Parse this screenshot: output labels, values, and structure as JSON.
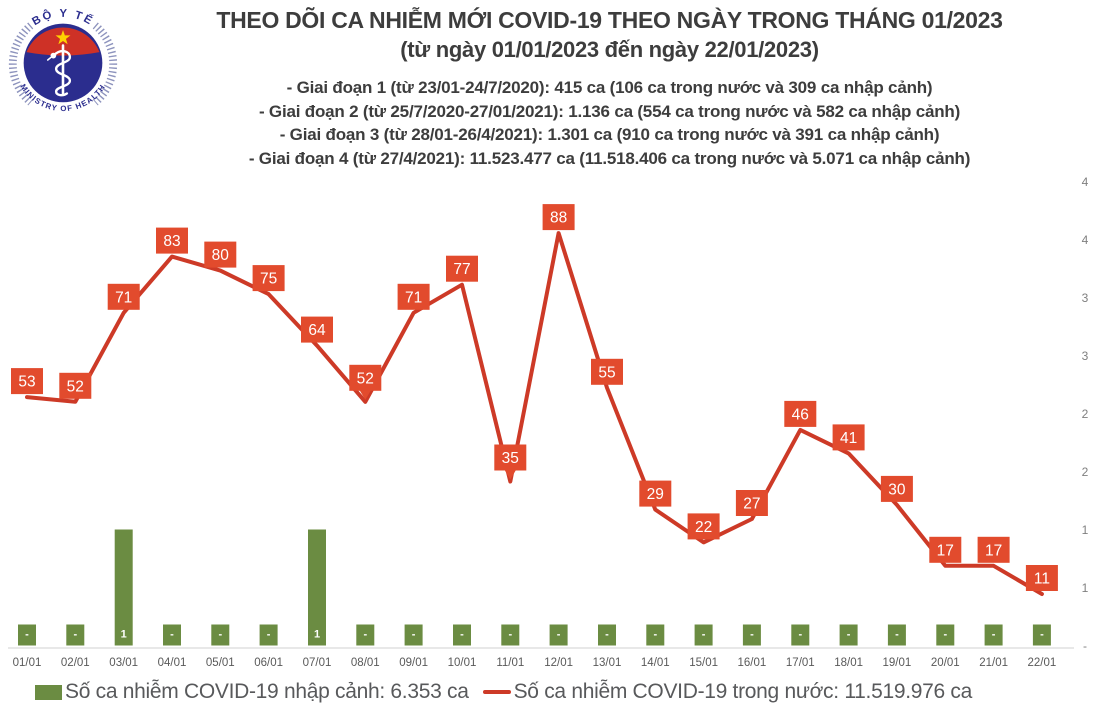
{
  "logo": {
    "top_text": "BỘ Y TẾ",
    "bottom_text": "MINISTRY OF HEALTH",
    "colors": {
      "red": "#ce3126",
      "blue": "#2b2d8e",
      "star": "#ffd200",
      "ring": "#8d93bd"
    }
  },
  "header": {
    "title": "THEO DÕI CA NHIỄM MỚI COVID-19 THEO NGÀY TRONG THÁNG 01/2023",
    "subtitle": "(từ ngày 01/01/2023 đến ngày 22/01/2023)",
    "phases": [
      "- Giai đoạn 1 (từ 23/01-24/7/2020): 415 ca (106 ca trong nước và 309 ca nhập cảnh)",
      "- Giai đoạn 2 (từ 25/7/2020-27/01/2021): 1.136 ca (554 ca trong nước và 582 ca nhập cảnh)",
      "- Giai đoạn 3 (từ 28/01-26/4/2021): 1.301 ca (910 ca trong nước và 391 ca nhập cảnh)",
      "- Giai đoạn 4 (từ 27/4/2021): 11.523.477 ca (11.518.406 ca trong nước và 5.071 ca nhập cảnh)"
    ]
  },
  "chart_data": {
    "type": "combo-bar-line",
    "categories": [
      "01/01",
      "02/01",
      "03/01",
      "04/01",
      "05/01",
      "06/01",
      "07/01",
      "08/01",
      "09/01",
      "10/01",
      "11/01",
      "12/01",
      "13/01",
      "14/01",
      "15/01",
      "16/01",
      "17/01",
      "18/01",
      "19/01",
      "20/01",
      "21/01",
      "22/01"
    ],
    "series": [
      {
        "name": "Số ca nhiễm COVID-19 nhập cảnh",
        "type": "bar",
        "color": "#6b8c42",
        "values": [
          0,
          0,
          1,
          0,
          0,
          0,
          1,
          0,
          0,
          0,
          0,
          0,
          0,
          0,
          0,
          0,
          0,
          0,
          0,
          0,
          0,
          0
        ],
        "labels": [
          "-",
          "-",
          "1",
          "-",
          "-",
          "-",
          "1",
          "-",
          "-",
          "-",
          "-",
          "-",
          "-",
          "-",
          "-",
          "-",
          "-",
          "-",
          "-",
          "-",
          "-",
          "-"
        ],
        "total_label": "6.353 ca"
      },
      {
        "name": "Số ca nhiễm COVID-19 trong nước",
        "type": "line",
        "color": "#cd3a27",
        "label_bg": "#e24b2d",
        "values": [
          53,
          52,
          71,
          83,
          80,
          75,
          64,
          52,
          71,
          77,
          35,
          88,
          55,
          29,
          22,
          27,
          46,
          41,
          30,
          17,
          17,
          11
        ],
        "total_label": "11.519.976 ca"
      }
    ],
    "callout_indices": [
      7,
      10
    ],
    "right_axis_tick_labels_visible": [
      "4",
      "4",
      "3",
      "3",
      "2",
      "2",
      "1",
      "1",
      "-"
    ],
    "left_axis_labels_visible": false,
    "grid": false,
    "legend_position": "bottom",
    "x_tick_color": "#595959",
    "axis_line_color": "#d9d9d9",
    "right_tick_color": "#7f7f7f"
  },
  "legend": {
    "bars": "Số ca nhiễm COVID-19 nhập cảnh: 6.353 ca",
    "line": "Số ca nhiễm COVID-19 trong nước: 11.519.976 ca"
  }
}
